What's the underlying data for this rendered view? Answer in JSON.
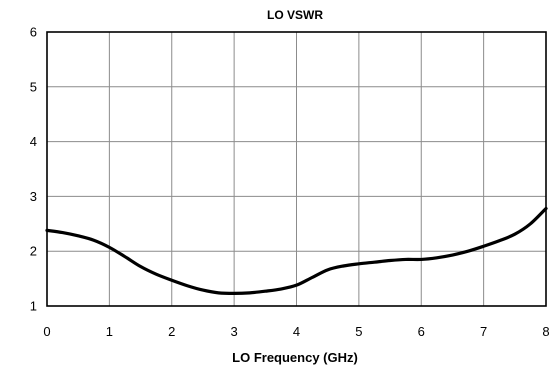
{
  "chart_data": {
    "type": "line",
    "title": "LO VSWR",
    "xlabel": "LO Frequency (GHz)",
    "ylabel": "",
    "xlim": [
      0,
      8
    ],
    "ylim": [
      1,
      6
    ],
    "xticks": [
      0,
      1,
      2,
      3,
      4,
      5,
      6,
      7,
      8
    ],
    "yticks": [
      1,
      2,
      3,
      4,
      5,
      6
    ],
    "grid": true,
    "legend": "none",
    "series": [
      {
        "color": "#000000",
        "x": [
          0,
          0.25,
          0.5,
          0.75,
          1,
          1.25,
          1.5,
          1.75,
          2,
          2.25,
          2.5,
          2.75,
          3,
          3.25,
          3.5,
          3.75,
          4,
          4.25,
          4.5,
          4.75,
          5,
          5.25,
          5.5,
          5.75,
          6,
          6.25,
          6.5,
          6.75,
          7,
          7.25,
          7.5,
          7.75,
          8
        ],
        "y": [
          2.38,
          2.34,
          2.28,
          2.2,
          2.07,
          1.9,
          1.72,
          1.58,
          1.47,
          1.37,
          1.29,
          1.24,
          1.23,
          1.24,
          1.27,
          1.31,
          1.38,
          1.52,
          1.66,
          1.73,
          1.77,
          1.8,
          1.83,
          1.85,
          1.85,
          1.88,
          1.93,
          2.0,
          2.09,
          2.19,
          2.31,
          2.5,
          2.78
        ]
      }
    ]
  }
}
